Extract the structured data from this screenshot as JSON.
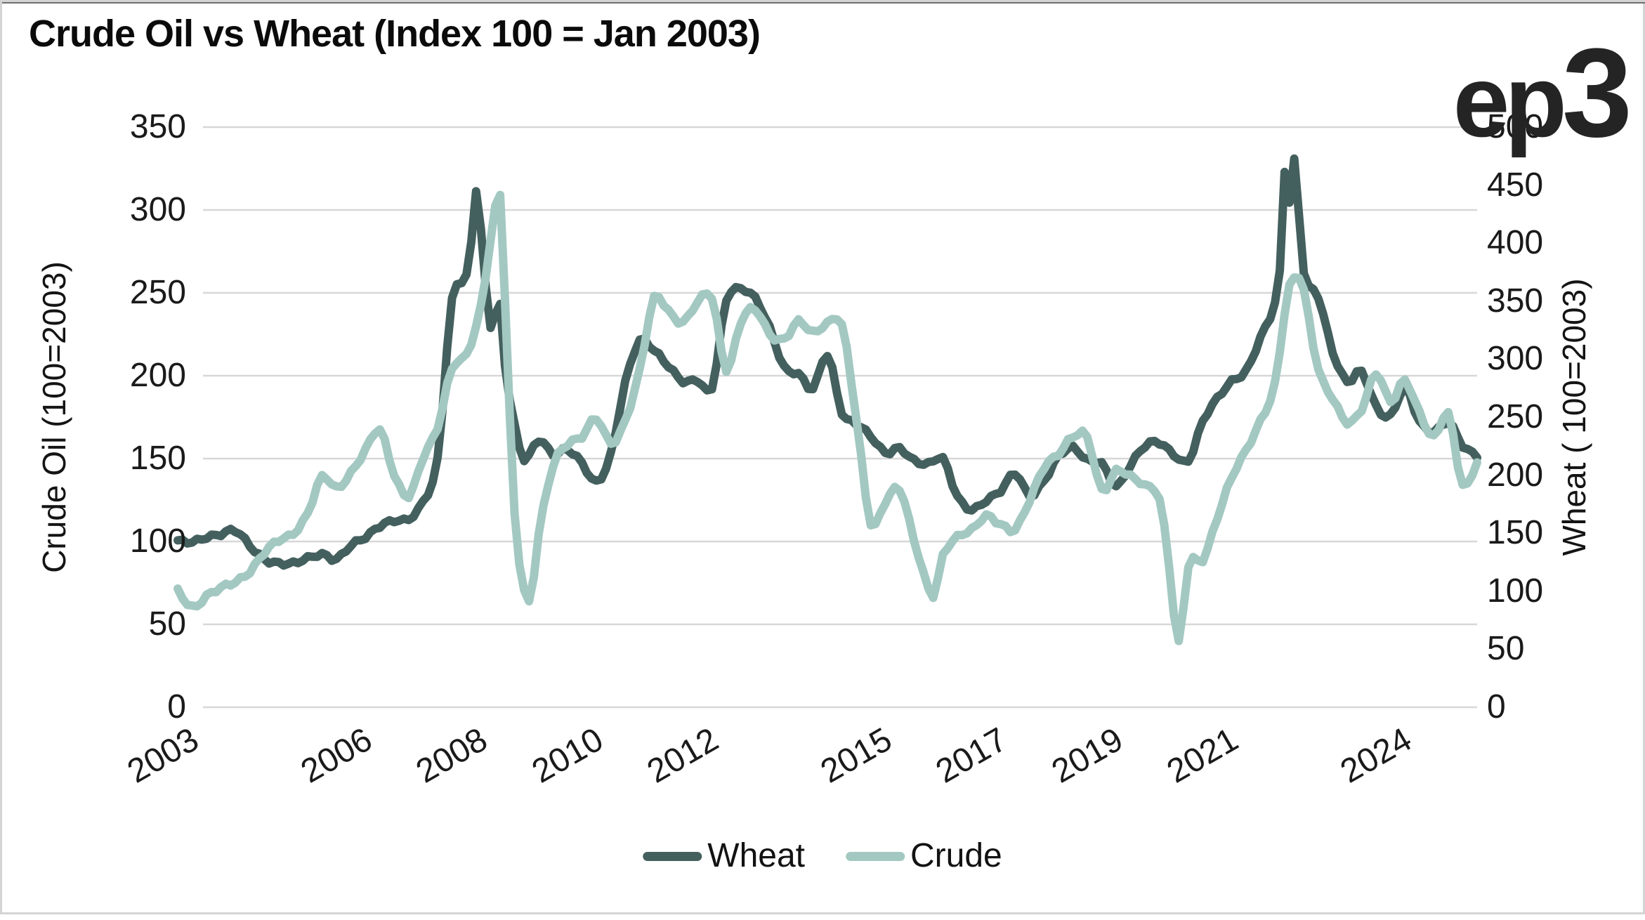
{
  "logo": {
    "ep": "ep",
    "three": "3"
  },
  "chart_data": {
    "type": "line",
    "title": "Crude Oil vs Wheat (Index 100 = Jan 2003)",
    "grid": "horizontal gridlines at left-axis ticks",
    "colors": {
      "grid": "#d7d7d7",
      "text": "#1a1a1a",
      "title": "#0b0b0b"
    },
    "x_axis": {
      "domain": [
        2003.0,
        2025.5
      ],
      "ticks": [
        2003,
        2006,
        2008,
        2010,
        2012,
        2015,
        2017,
        2019,
        2021,
        2024
      ],
      "tick_labels": [
        "2003",
        "2006",
        "2008",
        "2010",
        "2012",
        "2015",
        "2017",
        "2019",
        "2021",
        "2024"
      ]
    },
    "left_axis": {
      "title": "Crude Oil (100=2003)",
      "min": 0,
      "max": 350,
      "tick_step": 50,
      "tick_labels": [
        "0",
        "50",
        "100",
        "150",
        "200",
        "250",
        "300",
        "350"
      ]
    },
    "right_axis": {
      "title": "Wheat ( 100=2003)",
      "min": 0,
      "max": 500,
      "tick_step": 50,
      "tick_labels": [
        "0",
        "50",
        "100",
        "150",
        "200",
        "250",
        "300",
        "350",
        "400",
        "450",
        "500"
      ]
    },
    "legend": {
      "position": "bottom-center",
      "entries": [
        "Wheat",
        "Crude"
      ]
    },
    "series": [
      {
        "name": "Wheat",
        "color": "#44605e",
        "axis": "left",
        "points": [
          [
            2003.0,
            100
          ],
          [
            2003.25,
            99
          ],
          [
            2003.5,
            103
          ],
          [
            2003.75,
            105
          ],
          [
            2004.0,
            106
          ],
          [
            2004.25,
            97
          ],
          [
            2004.5,
            90
          ],
          [
            2004.75,
            87
          ],
          [
            2005.0,
            86
          ],
          [
            2005.25,
            90
          ],
          [
            2005.5,
            93
          ],
          [
            2005.75,
            89
          ],
          [
            2006.0,
            97
          ],
          [
            2006.25,
            103
          ],
          [
            2006.5,
            110
          ],
          [
            2006.75,
            112
          ],
          [
            2007.0,
            113
          ],
          [
            2007.25,
            125
          ],
          [
            2007.5,
            150
          ],
          [
            2007.75,
            245
          ],
          [
            2008.0,
            260
          ],
          [
            2008.08,
            280
          ],
          [
            2008.17,
            313
          ],
          [
            2008.33,
            255
          ],
          [
            2008.42,
            230
          ],
          [
            2008.58,
            242
          ],
          [
            2008.67,
            205
          ],
          [
            2008.83,
            170
          ],
          [
            2009.0,
            150
          ],
          [
            2009.25,
            162
          ],
          [
            2009.5,
            152
          ],
          [
            2009.75,
            155
          ],
          [
            2010.0,
            148
          ],
          [
            2010.25,
            136
          ],
          [
            2010.5,
            152
          ],
          [
            2010.75,
            196
          ],
          [
            2011.0,
            222
          ],
          [
            2011.25,
            215
          ],
          [
            2011.5,
            205
          ],
          [
            2011.75,
            197
          ],
          [
            2012.0,
            198
          ],
          [
            2012.25,
            192
          ],
          [
            2012.5,
            245
          ],
          [
            2012.75,
            253
          ],
          [
            2013.0,
            247
          ],
          [
            2013.25,
            228
          ],
          [
            2013.5,
            205
          ],
          [
            2013.75,
            202
          ],
          [
            2014.0,
            192
          ],
          [
            2014.25,
            212
          ],
          [
            2014.5,
            178
          ],
          [
            2014.75,
            172
          ],
          [
            2015.0,
            163
          ],
          [
            2015.25,
            153
          ],
          [
            2015.5,
            157
          ],
          [
            2015.75,
            149
          ],
          [
            2016.0,
            146
          ],
          [
            2016.25,
            150
          ],
          [
            2016.5,
            128
          ],
          [
            2016.75,
            119
          ],
          [
            2017.0,
            124
          ],
          [
            2017.25,
            131
          ],
          [
            2017.5,
            142
          ],
          [
            2017.75,
            127
          ],
          [
            2018.0,
            136
          ],
          [
            2018.25,
            152
          ],
          [
            2018.5,
            157
          ],
          [
            2018.75,
            148
          ],
          [
            2019.0,
            147
          ],
          [
            2019.25,
            134
          ],
          [
            2019.5,
            146
          ],
          [
            2019.75,
            157
          ],
          [
            2020.0,
            160
          ],
          [
            2020.25,
            153
          ],
          [
            2020.5,
            148
          ],
          [
            2020.75,
            172
          ],
          [
            2021.0,
            187
          ],
          [
            2021.25,
            197
          ],
          [
            2021.5,
            202
          ],
          [
            2021.75,
            223
          ],
          [
            2022.0,
            245
          ],
          [
            2022.1,
            270
          ],
          [
            2022.17,
            325
          ],
          [
            2022.25,
            305
          ],
          [
            2022.33,
            330
          ],
          [
            2022.5,
            262
          ],
          [
            2022.75,
            248
          ],
          [
            2023.0,
            215
          ],
          [
            2023.25,
            196
          ],
          [
            2023.5,
            202
          ],
          [
            2023.75,
            182
          ],
          [
            2024.0,
            176
          ],
          [
            2024.25,
            192
          ],
          [
            2024.5,
            172
          ],
          [
            2024.75,
            167
          ],
          [
            2025.0,
            172
          ],
          [
            2025.25,
            157
          ],
          [
            2025.5,
            152
          ]
        ]
      },
      {
        "name": "Crude",
        "color": "#a3c8c2",
        "axis": "right",
        "points": [
          [
            2003.0,
            100
          ],
          [
            2003.25,
            87
          ],
          [
            2003.5,
            96
          ],
          [
            2003.75,
            102
          ],
          [
            2004.0,
            108
          ],
          [
            2004.25,
            118
          ],
          [
            2004.5,
            133
          ],
          [
            2004.75,
            143
          ],
          [
            2005.0,
            150
          ],
          [
            2005.25,
            168
          ],
          [
            2005.5,
            198
          ],
          [
            2005.75,
            188
          ],
          [
            2006.0,
            203
          ],
          [
            2006.25,
            222
          ],
          [
            2006.5,
            238
          ],
          [
            2006.75,
            200
          ],
          [
            2007.0,
            183
          ],
          [
            2007.25,
            215
          ],
          [
            2007.5,
            240
          ],
          [
            2007.75,
            293
          ],
          [
            2008.0,
            305
          ],
          [
            2008.25,
            345
          ],
          [
            2008.5,
            430
          ],
          [
            2008.58,
            444
          ],
          [
            2008.67,
            350
          ],
          [
            2008.83,
            170
          ],
          [
            2009.08,
            90
          ],
          [
            2009.25,
            148
          ],
          [
            2009.5,
            208
          ],
          [
            2009.75,
            228
          ],
          [
            2010.0,
            233
          ],
          [
            2010.25,
            248
          ],
          [
            2010.5,
            228
          ],
          [
            2010.75,
            248
          ],
          [
            2011.0,
            290
          ],
          [
            2011.25,
            352
          ],
          [
            2011.5,
            342
          ],
          [
            2011.75,
            332
          ],
          [
            2012.0,
            348
          ],
          [
            2012.25,
            353
          ],
          [
            2012.5,
            292
          ],
          [
            2012.75,
            332
          ],
          [
            2013.0,
            342
          ],
          [
            2013.25,
            322
          ],
          [
            2013.5,
            318
          ],
          [
            2013.75,
            332
          ],
          [
            2014.0,
            322
          ],
          [
            2014.25,
            332
          ],
          [
            2014.5,
            330
          ],
          [
            2014.75,
            248
          ],
          [
            2015.0,
            158
          ],
          [
            2015.25,
            178
          ],
          [
            2015.5,
            188
          ],
          [
            2015.75,
            143
          ],
          [
            2016.08,
            97
          ],
          [
            2016.25,
            132
          ],
          [
            2016.5,
            146
          ],
          [
            2016.75,
            152
          ],
          [
            2017.0,
            166
          ],
          [
            2017.25,
            158
          ],
          [
            2017.5,
            152
          ],
          [
            2017.75,
            178
          ],
          [
            2018.0,
            208
          ],
          [
            2018.25,
            218
          ],
          [
            2018.5,
            232
          ],
          [
            2018.75,
            233
          ],
          [
            2019.0,
            188
          ],
          [
            2019.25,
            203
          ],
          [
            2019.5,
            198
          ],
          [
            2019.75,
            192
          ],
          [
            2020.0,
            180
          ],
          [
            2020.17,
            120
          ],
          [
            2020.33,
            54
          ],
          [
            2020.5,
            122
          ],
          [
            2020.75,
            128
          ],
          [
            2021.0,
            163
          ],
          [
            2021.25,
            197
          ],
          [
            2021.5,
            222
          ],
          [
            2021.75,
            248
          ],
          [
            2022.0,
            278
          ],
          [
            2022.17,
            340
          ],
          [
            2022.25,
            362
          ],
          [
            2022.42,
            372
          ],
          [
            2022.5,
            360
          ],
          [
            2022.75,
            292
          ],
          [
            2023.0,
            265
          ],
          [
            2023.25,
            245
          ],
          [
            2023.5,
            258
          ],
          [
            2023.75,
            288
          ],
          [
            2024.0,
            262
          ],
          [
            2024.25,
            282
          ],
          [
            2024.5,
            255
          ],
          [
            2024.75,
            232
          ],
          [
            2025.0,
            252
          ],
          [
            2025.25,
            192
          ],
          [
            2025.5,
            212
          ]
        ]
      }
    ]
  }
}
